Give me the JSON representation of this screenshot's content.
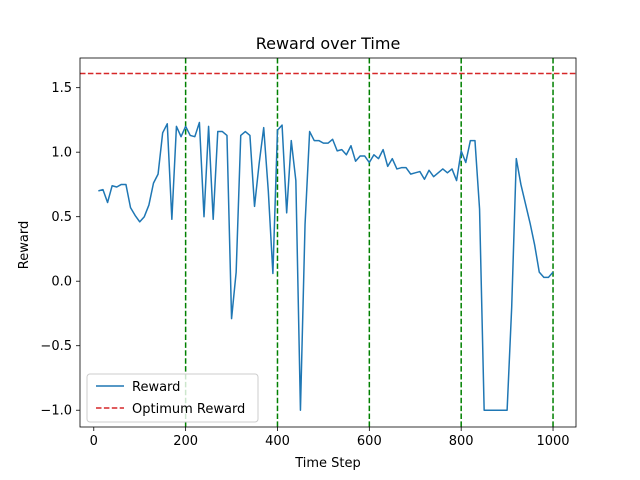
{
  "chart_data": {
    "type": "line",
    "title": "Reward over Time",
    "xlabel": "Time Step",
    "ylabel": "Reward",
    "xlim": [
      -30,
      1050
    ],
    "ylim": [
      -1.13,
      1.73
    ],
    "xticks": [
      0,
      200,
      400,
      600,
      800,
      1000
    ],
    "yticks": [
      -1.0,
      -0.5,
      0.0,
      0.5,
      1.0,
      1.5
    ],
    "xtick_labels": [
      "0",
      "200",
      "400",
      "600",
      "800",
      "1000"
    ],
    "ytick_labels": [
      "−1.0",
      "−0.5",
      "0.0",
      "0.5",
      "1.0",
      "1.5"
    ],
    "legend_position": "lower-left",
    "series": [
      {
        "name": "Reward",
        "color": "#1f77b4",
        "style": "solid",
        "x": [
          10,
          20,
          30,
          40,
          50,
          60,
          70,
          80,
          90,
          100,
          110,
          120,
          130,
          140,
          150,
          160,
          170,
          180,
          190,
          200,
          210,
          220,
          230,
          240,
          250,
          260,
          270,
          280,
          290,
          300,
          310,
          320,
          330,
          340,
          350,
          360,
          370,
          380,
          390,
          400,
          410,
          420,
          430,
          440,
          450,
          460,
          470,
          480,
          490,
          500,
          510,
          520,
          530,
          540,
          550,
          560,
          570,
          580,
          590,
          600,
          610,
          620,
          630,
          640,
          650,
          660,
          670,
          680,
          690,
          700,
          710,
          720,
          730,
          740,
          750,
          760,
          770,
          780,
          790,
          800,
          810,
          820,
          830,
          840,
          850,
          860,
          870,
          880,
          890,
          900,
          910,
          920,
          930,
          940,
          950,
          960,
          970,
          980,
          990,
          1000
        ],
        "y": [
          0.7,
          0.71,
          0.61,
          0.74,
          0.73,
          0.75,
          0.75,
          0.57,
          0.51,
          0.46,
          0.5,
          0.59,
          0.76,
          0.83,
          1.15,
          1.22,
          0.48,
          1.2,
          1.12,
          1.2,
          1.13,
          1.12,
          1.23,
          0.5,
          1.2,
          0.48,
          1.16,
          1.16,
          1.13,
          -0.29,
          0.07,
          1.13,
          1.16,
          1.13,
          0.58,
          0.91,
          1.19,
          0.7,
          0.06,
          1.17,
          1.21,
          0.53,
          1.09,
          0.78,
          -1.0,
          0.44,
          1.16,
          1.09,
          1.09,
          1.07,
          1.07,
          1.1,
          1.01,
          1.02,
          0.98,
          1.05,
          0.93,
          0.97,
          0.97,
          0.92,
          0.98,
          0.95,
          1.02,
          0.89,
          0.95,
          0.87,
          0.88,
          0.88,
          0.83,
          0.84,
          0.85,
          0.79,
          0.86,
          0.81,
          0.84,
          0.87,
          0.84,
          0.87,
          0.78,
          1.01,
          0.92,
          1.09,
          1.09,
          0.56,
          -1.0,
          -1.0,
          -1.0,
          -1.0,
          -1.0,
          -1.0,
          -0.2,
          0.95,
          0.75,
          0.6,
          0.45,
          0.28,
          0.07,
          0.03,
          0.03,
          0.07
        ]
      },
      {
        "name": "Optimum Reward",
        "color": "#d62728",
        "style": "dashed",
        "y_constant": 1.61
      }
    ],
    "vertical_lines": {
      "color": "#008000",
      "style": "dashed",
      "x": [
        200,
        400,
        600,
        800,
        1000
      ]
    }
  }
}
